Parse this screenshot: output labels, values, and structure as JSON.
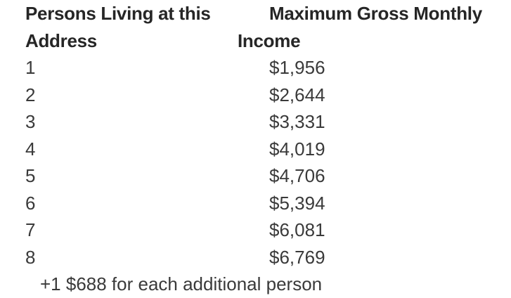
{
  "table": {
    "header": {
      "persons_line1": "Persons Living at this",
      "persons_line2": "Address",
      "income_line1": "Maximum Gross Monthly",
      "income_line2": "Income"
    },
    "rows": [
      {
        "persons": "1",
        "income": "$1,956"
      },
      {
        "persons": "2",
        "income": "$2,644"
      },
      {
        "persons": "3",
        "income": "$3,331"
      },
      {
        "persons": "4",
        "income": "$4,019"
      },
      {
        "persons": "5",
        "income": "$4,706"
      },
      {
        "persons": "6",
        "income": "$5,394"
      },
      {
        "persons": "7",
        "income": "$6,081"
      },
      {
        "persons": "8",
        "income": "$6,769"
      }
    ],
    "footnote": "+1 $688 for each additional person"
  },
  "colors": {
    "heading_text": "#262626",
    "body_text": "#3a3a3a",
    "background": "#ffffff"
  }
}
